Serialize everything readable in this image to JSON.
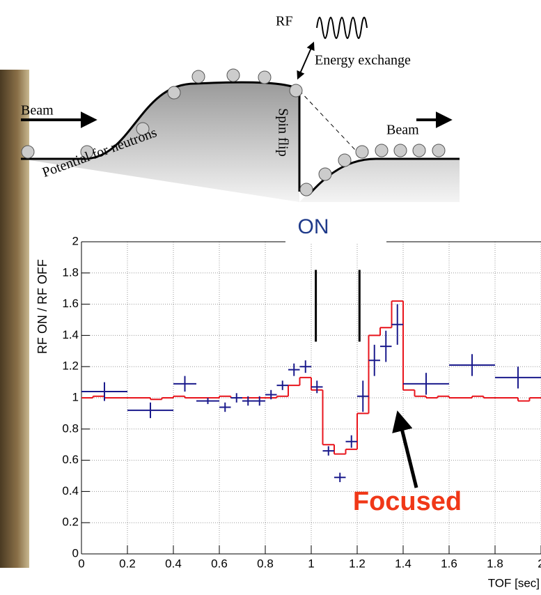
{
  "diagram": {
    "rf": "RF",
    "energy": "Energy exchange",
    "beam_in": "Beam",
    "beam_out": "Beam",
    "potential": "Potential for neutrons",
    "spin_flip": "Spin flip"
  },
  "chart_data": {
    "type": "errorbar",
    "title": "ON",
    "ylabel": "RF ON / RF OFF",
    "xlabel": "TOF [sec]",
    "annotation": "Focused",
    "xlim": [
      0,
      2
    ],
    "ylim": [
      0,
      2
    ],
    "xticks": [
      0,
      0.2,
      0.4,
      0.6,
      0.8,
      1,
      1.2,
      1.4,
      1.6,
      1.8,
      2
    ],
    "yticks": [
      0,
      0.2,
      0.4,
      0.6,
      0.8,
      1,
      1.2,
      1.4,
      1.6,
      1.8,
      2
    ],
    "grid": true,
    "marker_lines": [
      1.02,
      1.21
    ],
    "marker_range": [
      1.36,
      1.82
    ],
    "points": {
      "color": "#1a1a8c",
      "x": [
        0.1,
        0.3,
        0.45,
        0.55,
        0.625,
        0.675,
        0.725,
        0.775,
        0.825,
        0.875,
        0.925,
        0.975,
        1.025,
        1.075,
        1.125,
        1.175,
        1.225,
        1.275,
        1.325,
        1.375,
        1.5,
        1.7,
        1.9
      ],
      "y": [
        1.04,
        0.92,
        1.09,
        0.98,
        0.94,
        1.0,
        0.98,
        0.98,
        1.02,
        1.08,
        1.18,
        1.2,
        1.07,
        0.66,
        0.49,
        0.72,
        1.01,
        1.24,
        1.33,
        1.47,
        1.09,
        1.21,
        1.13
      ],
      "xerr": [
        0.1,
        0.1,
        0.05,
        0.05,
        0.025,
        0.025,
        0.025,
        0.025,
        0.025,
        0.025,
        0.025,
        0.025,
        0.025,
        0.025,
        0.025,
        0.025,
        0.025,
        0.025,
        0.025,
        0.025,
        0.1,
        0.1,
        0.1
      ],
      "yerr": [
        0.06,
        0.05,
        0.05,
        0.02,
        0.03,
        0.03,
        0.03,
        0.03,
        0.03,
        0.03,
        0.04,
        0.04,
        0.04,
        0.03,
        0.03,
        0.04,
        0.1,
        0.1,
        0.1,
        0.13,
        0.07,
        0.07,
        0.07
      ]
    },
    "step": {
      "color": "#e8141c",
      "bins": [
        0,
        0.05,
        0.1,
        0.15,
        0.2,
        0.25,
        0.3,
        0.35,
        0.4,
        0.45,
        0.5,
        0.55,
        0.6,
        0.65,
        0.7,
        0.75,
        0.8,
        0.85,
        0.9,
        0.95,
        1.0,
        1.05,
        1.1,
        1.15,
        1.2,
        1.25,
        1.3,
        1.35,
        1.4,
        1.45,
        1.5,
        1.55,
        1.6,
        1.65,
        1.7,
        1.75,
        1.8,
        1.85,
        1.9,
        1.95,
        2.0
      ],
      "values": [
        1.0,
        1.01,
        1.0,
        1.0,
        1.0,
        1.0,
        0.99,
        1.0,
        1.01,
        1.0,
        1.0,
        1.0,
        1.01,
        1.0,
        1.0,
        1.0,
        1.0,
        1.01,
        1.08,
        1.13,
        1.05,
        0.7,
        0.64,
        0.67,
        0.9,
        1.4,
        1.45,
        1.62,
        1.05,
        1.01,
        1.0,
        1.01,
        1.0,
        1.0,
        1.01,
        1.0,
        1.0,
        1.0,
        0.98,
        1.0
      ]
    }
  }
}
